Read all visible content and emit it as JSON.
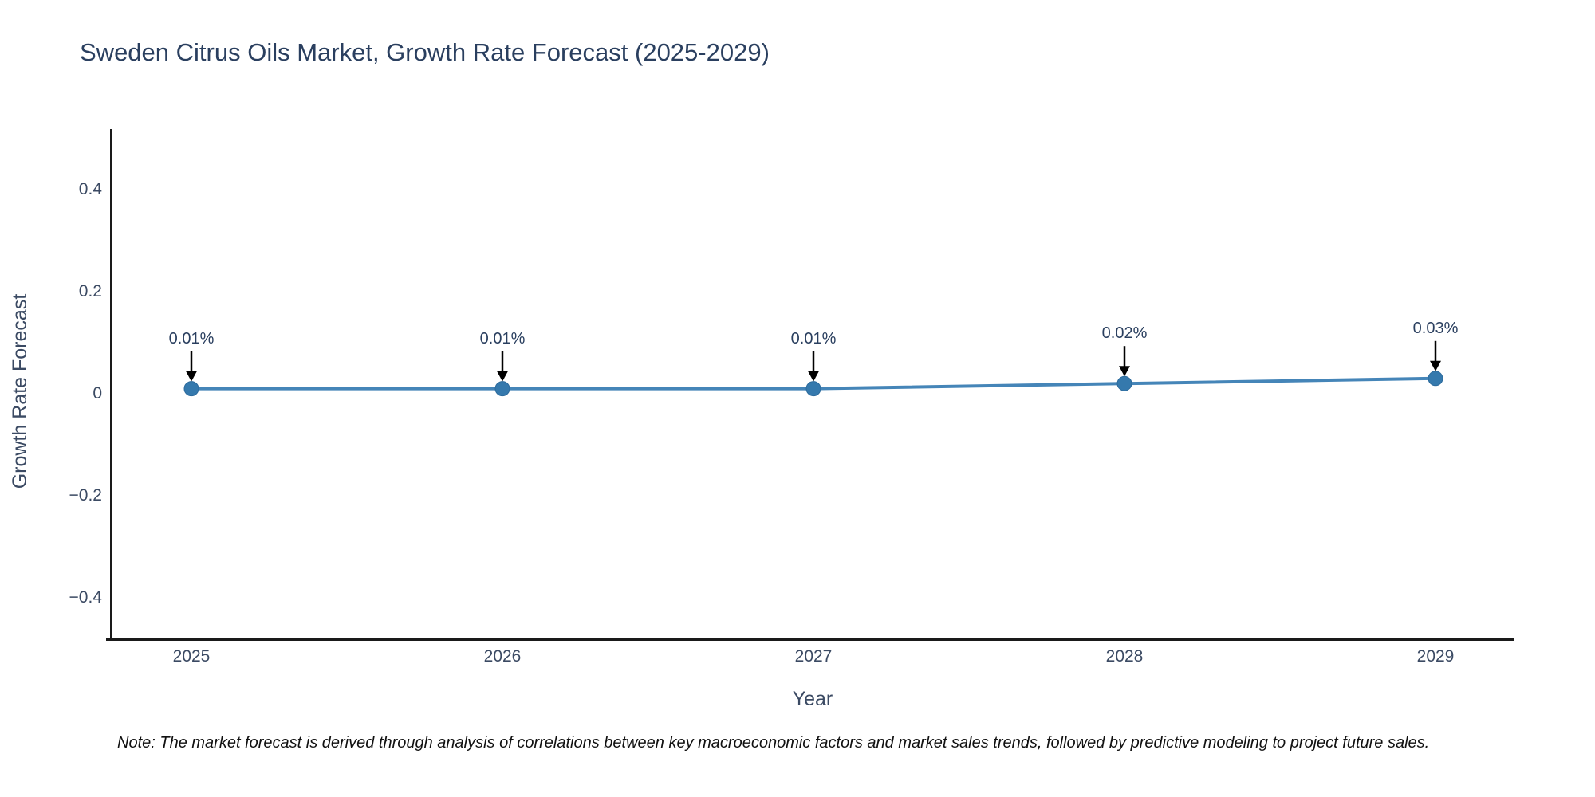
{
  "title": "Sweden Citrus Oils Market, Growth Rate Forecast (2025-2029)",
  "footnote": "Note: The market forecast is derived through analysis of correlations between key macroeconomic factors and market sales trends, followed by predictive modeling to project future sales.",
  "chart_data": {
    "type": "line",
    "title": "Sweden Citrus Oils Market, Growth Rate Forecast (2025-2029)",
    "xlabel": "Year",
    "ylabel": "Growth Rate Forecast",
    "categories": [
      "2025",
      "2026",
      "2027",
      "2028",
      "2029"
    ],
    "series": [
      {
        "name": "Growth Rate Forecast",
        "values": [
          0.01,
          0.01,
          0.01,
          0.02,
          0.03
        ]
      }
    ],
    "annotations": [
      "0.01%",
      "0.01%",
      "0.01%",
      "0.02%",
      "0.03%"
    ],
    "yticks": [
      0.4,
      0.2,
      0,
      -0.2,
      -0.4
    ],
    "ytick_labels": [
      "0.4",
      "0.2",
      "0",
      "−0.2",
      "−0.4"
    ],
    "ylim": [
      -0.48,
      0.52
    ],
    "grid": false,
    "legend_position": "none",
    "colors": {
      "line": "#4585b8",
      "marker": "#3579ad",
      "marker_edge": "#2d6b9d",
      "axis_line": "#1a1a1a",
      "text": "#2a3f5f",
      "tick_text": "#3b4a63",
      "arrow": "#000000"
    }
  }
}
